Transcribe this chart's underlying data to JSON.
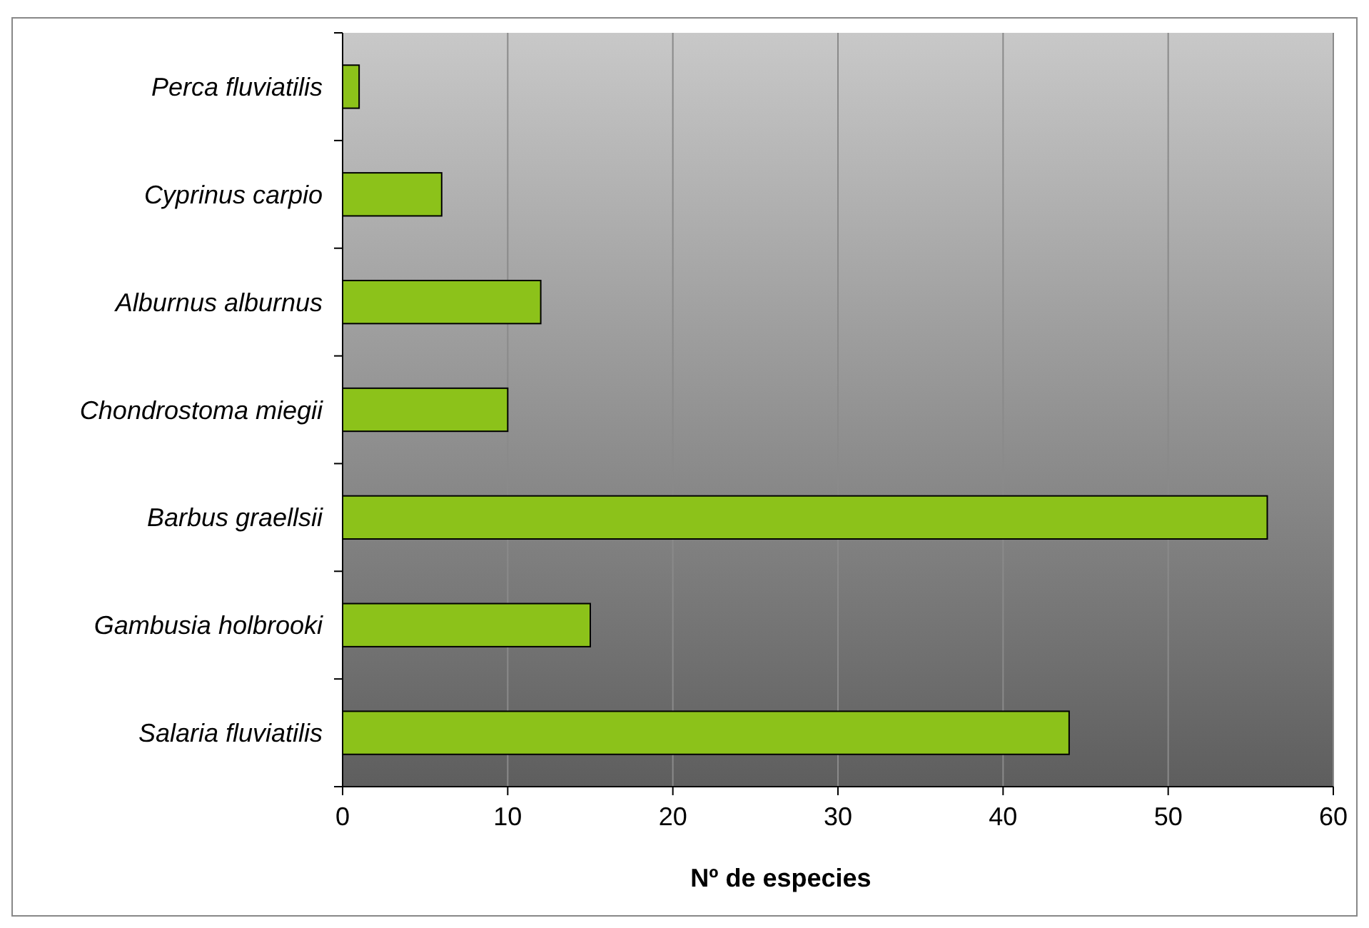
{
  "chart_data": {
    "type": "bar",
    "orientation": "horizontal",
    "xlabel": "Nº de especies",
    "categories": [
      "Perca fluviatilis",
      "Cyprinus carpio",
      "Alburnus alburnus",
      "Chondrostoma miegii",
      "Barbus graellsii",
      "Gambusia holbrooki",
      "Salaria fluviatilis"
    ],
    "values": [
      1,
      6,
      12,
      10,
      56,
      15,
      44
    ],
    "color": "#8cc21a",
    "xlim": [
      0,
      60
    ],
    "xticks": [
      0,
      10,
      20,
      30,
      40,
      50,
      60
    ],
    "grid": "x"
  }
}
